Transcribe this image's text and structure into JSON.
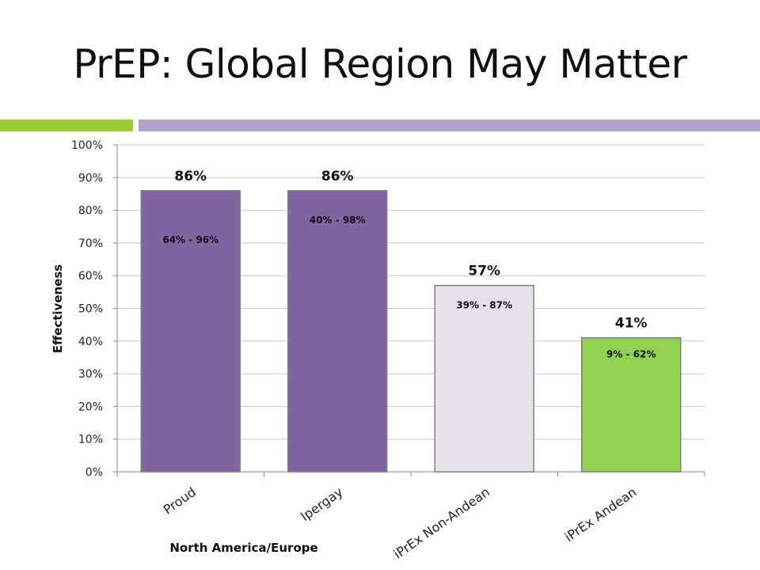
{
  "slide": {
    "title": "PrEP: Global Region May Matter",
    "accent_green": "#9acd32",
    "accent_purple": "#b4a0c8"
  },
  "chart_data": {
    "type": "bar",
    "title": "",
    "ylabel": "Effectiveness",
    "xlabel": "North America/Europe",
    "ylim": [
      0,
      100
    ],
    "y_ticks": [
      0,
      10,
      20,
      30,
      40,
      50,
      60,
      70,
      80,
      90,
      100
    ],
    "y_tick_suffix": "%",
    "grid": true,
    "categories": [
      "Proud",
      "Ipergay",
      "iPrEx Non-Andean",
      "iPrEx Andean"
    ],
    "values": [
      86,
      86,
      57,
      41
    ],
    "value_labels": [
      "86%",
      "86%",
      "57%",
      "41%"
    ],
    "ci_labels": [
      "64% - 96%",
      "40% - 98%",
      "39% - 87%",
      "9% - 62%"
    ],
    "ci_label_levels": [
      70,
      76,
      50,
      35
    ],
    "bar_colors": [
      "#8064a2",
      "#8064a2",
      "#e6e0ec",
      "#92d050"
    ],
    "bar_outline": "#7f7f7f",
    "grid_color": "#c8c8c8"
  }
}
